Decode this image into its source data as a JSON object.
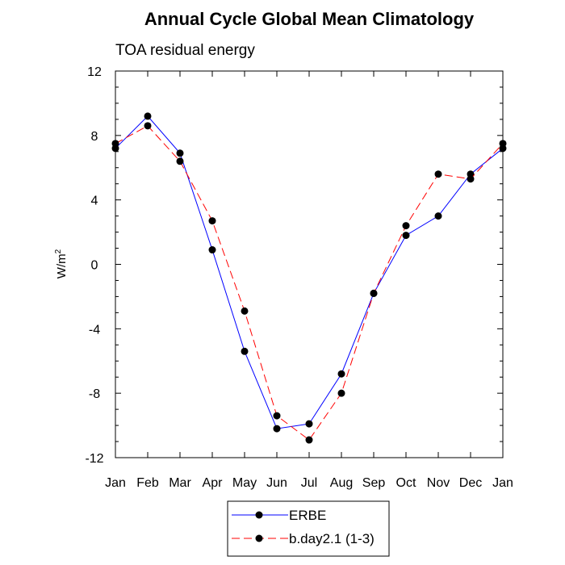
{
  "chart_data": {
    "type": "line",
    "title": "Annual Cycle Global Mean Climatology",
    "subtitle": "TOA residual energy",
    "xlabel": "",
    "ylabel": "W/m",
    "ylabel_superscript": "2",
    "categories": [
      "Jan",
      "Feb",
      "Mar",
      "Apr",
      "May",
      "Jun",
      "Jul",
      "Aug",
      "Sep",
      "Oct",
      "Nov",
      "Dec",
      "Jan"
    ],
    "ylim": [
      -12,
      12
    ],
    "yticks": [
      -12,
      -8,
      -4,
      0,
      4,
      8,
      12
    ],
    "ytick_labels": [
      "-12",
      "-8",
      "-4",
      "0",
      "4",
      "8",
      "12"
    ],
    "grid": false,
    "legend_position": "bottom-center",
    "series": [
      {
        "name": "ERBE",
        "color": "#0000ff",
        "dash": "solid",
        "values": [
          7.2,
          9.2,
          6.9,
          0.9,
          -5.4,
          -10.2,
          -9.9,
          -6.8,
          -1.8,
          1.8,
          3.0,
          5.6,
          7.2
        ]
      },
      {
        "name": "b.day2.1 (1-3)",
        "color": "#ff0000",
        "dash": "dashed",
        "values": [
          7.5,
          8.6,
          6.4,
          2.7,
          -2.9,
          -9.4,
          -10.9,
          -8.0,
          -1.8,
          2.4,
          5.6,
          5.3,
          7.5
        ]
      }
    ]
  }
}
